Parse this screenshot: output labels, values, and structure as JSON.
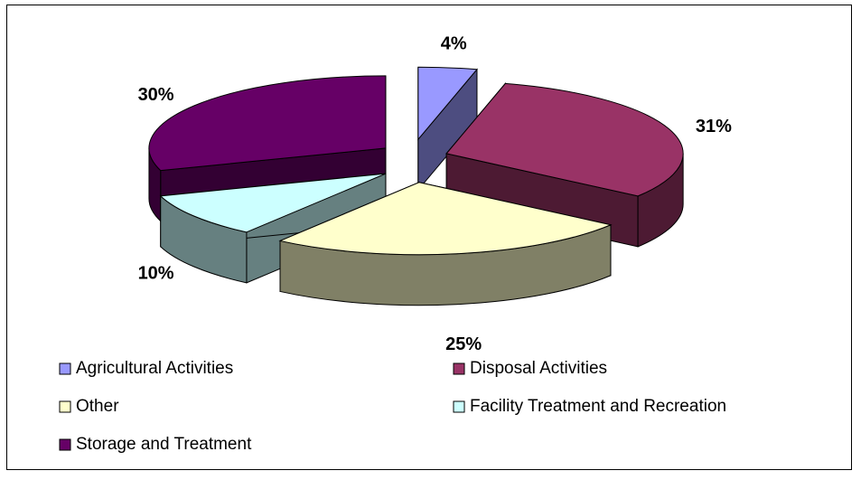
{
  "chart_data": {
    "type": "pie",
    "categories": [
      "Agricultural Activities",
      "Disposal Activities",
      "Other",
      "Facility Treatment and Recreation",
      "Storage and Treatment"
    ],
    "values": [
      4,
      31,
      25,
      10,
      30
    ],
    "value_labels": [
      "4%",
      "31%",
      "25%",
      "10%",
      "30%"
    ],
    "colors": [
      "#9999ff",
      "#993366",
      "#ffffcc",
      "#ccffff",
      "#660066"
    ],
    "legend": "bottom"
  }
}
